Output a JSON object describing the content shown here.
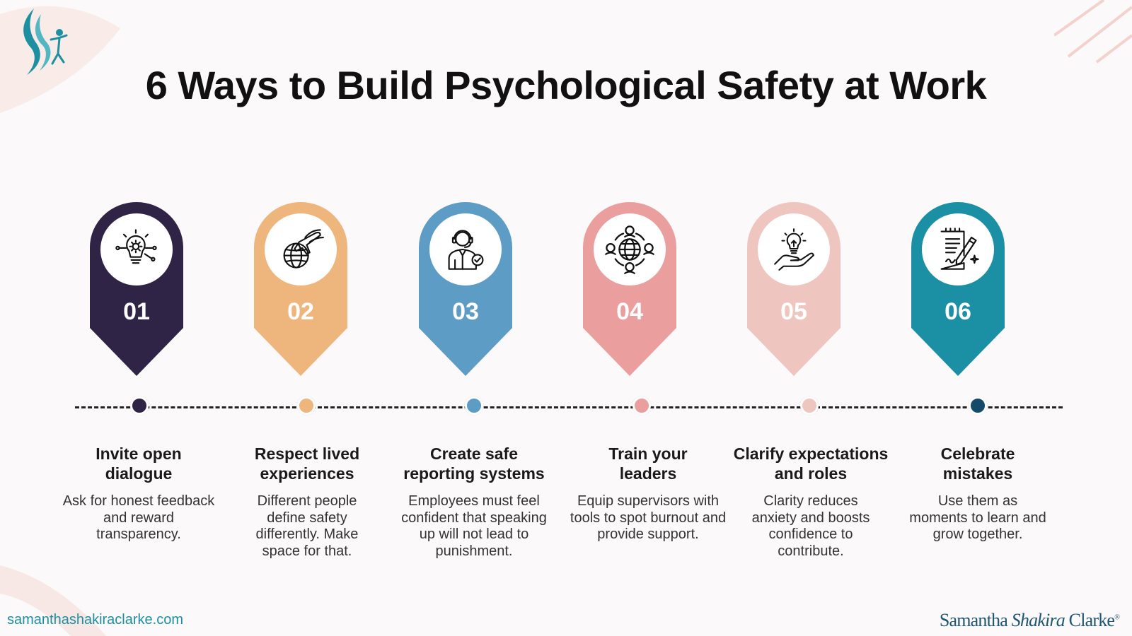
{
  "title": "6 Ways to Build Psychological Safety at Work",
  "steps": [
    {
      "number": "01",
      "color": "#302446",
      "icon": "lightbulb-gear-icon",
      "title": "Invite open dialogue",
      "description": "Ask for honest feedback and reward transparency."
    },
    {
      "number": "02",
      "color": "#eeb57d",
      "icon": "globe-plane-icon",
      "title": "Respect lived experiences",
      "description": "Different people define safety differently. Make space for that."
    },
    {
      "number": "03",
      "color": "#5c9cc5",
      "icon": "support-agent-icon",
      "title": "Create safe reporting systems",
      "description": "Employees must feel confident that speaking up will not lead to punishment."
    },
    {
      "number": "04",
      "color": "#eb9e9e",
      "icon": "global-network-icon",
      "title": "Train your leaders",
      "description": "Equip supervisors with tools to spot burnout and provide support."
    },
    {
      "number": "05",
      "color": "#efc6bf",
      "icon": "hand-lightbulb-icon",
      "title": "Clarify expectations and roles",
      "description": "Clarity reduces anxiety and boosts confidence to contribute."
    },
    {
      "number": "06",
      "color": "#1b8fa4",
      "icon": "document-pen-icon",
      "title": "Celebrate mistakes",
      "description": "Use them as moments to learn and grow together."
    }
  ],
  "dot_colors": [
    "#302446",
    "#eeb57d",
    "#5c9cc5",
    "#eb9e9e",
    "#efc6bf",
    "#134b69"
  ],
  "footer": {
    "url": "samanthashakiraclarke.com",
    "brand_first": "Samantha",
    "brand_middle": "Shakira",
    "brand_last": "Clarke",
    "brand_mark": "®"
  },
  "colors": {
    "brand_teal": "#1d8fa0",
    "brand_navy": "#1f5673",
    "decor_pink": "#f5dad6"
  }
}
